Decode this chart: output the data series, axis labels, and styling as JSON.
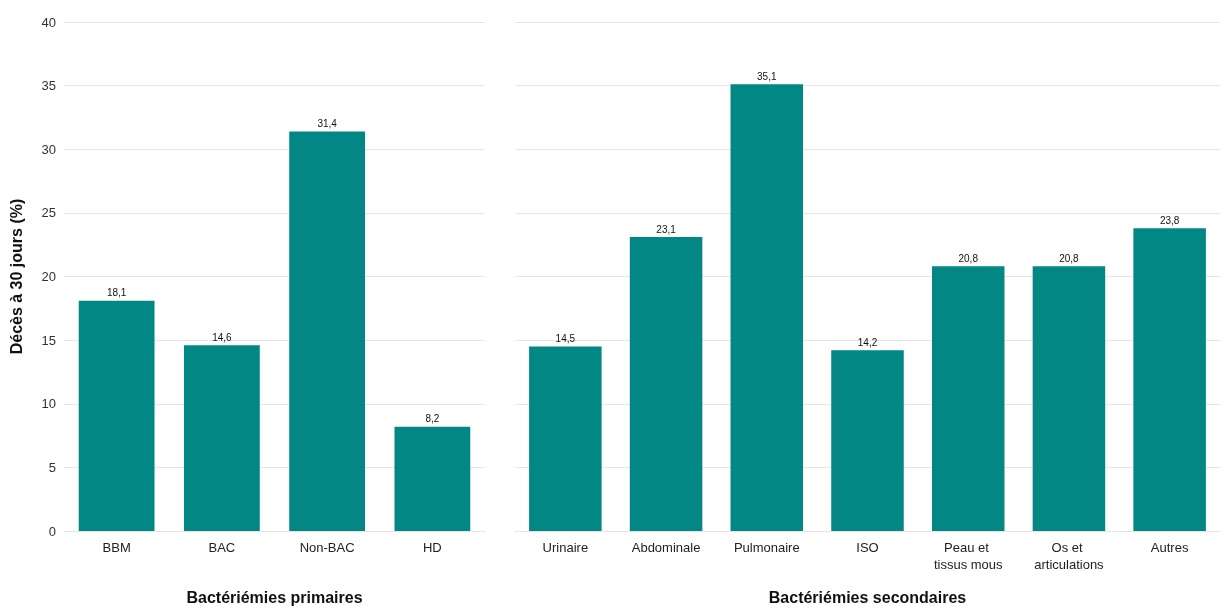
{
  "chart_data": [
    {
      "type": "bar",
      "xlabel": "Bactériémies primaires",
      "ylabel": "Décès à 30 jours (%)",
      "categories": [
        "BBM",
        "BAC",
        "Non-BAC",
        "HD"
      ],
      "values": [
        18.1,
        14.6,
        31.4,
        8.2
      ],
      "value_labels": [
        "18,1",
        "14,6",
        "31,4",
        "8,2"
      ],
      "color": "#028784",
      "ylim": [
        0,
        40
      ],
      "yticks": [
        0,
        5,
        10,
        15,
        20,
        25,
        30,
        35,
        40
      ],
      "grid": "y"
    },
    {
      "type": "bar",
      "xlabel": "Bactériémies secondaires",
      "categories": [
        "Urinaire",
        "Abdominale",
        "Pulmonaire",
        "ISO",
        "Peau et tissus mous",
        "Os et articulations",
        "Autres"
      ],
      "values": [
        14.5,
        23.1,
        35.1,
        14.2,
        20.8,
        20.8,
        23.8
      ],
      "value_labels": [
        "14,5",
        "23,1",
        "35,1",
        "14,2",
        "20,8",
        "20,8",
        "23,8"
      ],
      "color": "#028784",
      "ylim": [
        0,
        40
      ],
      "yticks": [
        0,
        5,
        10,
        15,
        20,
        25,
        30,
        35,
        40
      ],
      "grid": "y",
      "tick_labels": "x"
    }
  ]
}
